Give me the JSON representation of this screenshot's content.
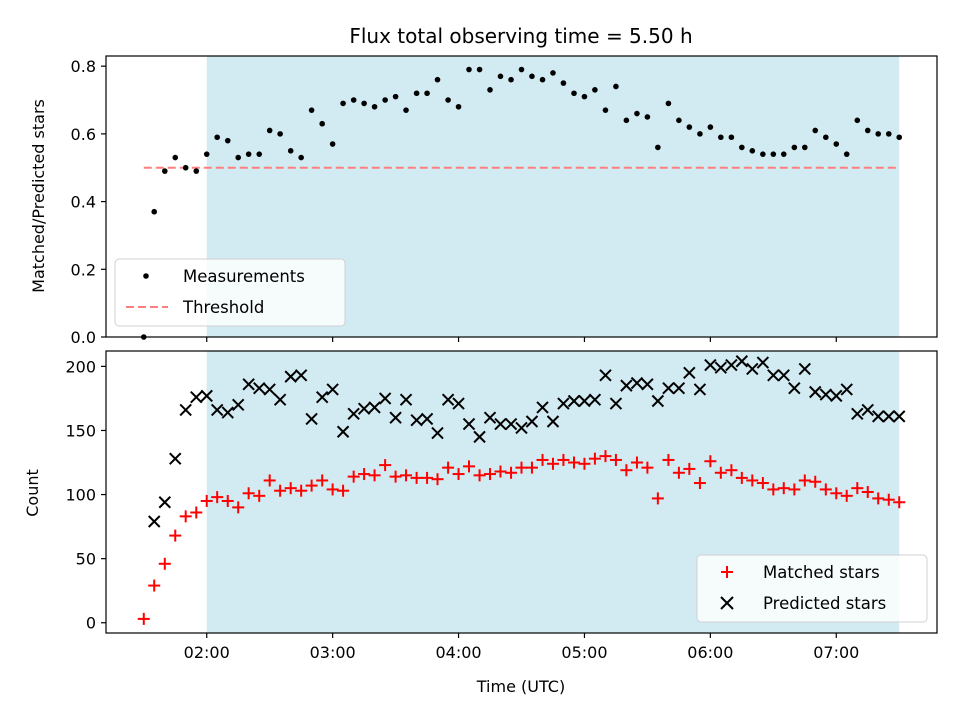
{
  "chart_data": [
    {
      "type": "scatter",
      "title": "Flux total observing time = 5.50 h",
      "xlabel": "",
      "ylabel": "Matched/Predicted stars",
      "ylim": [
        0,
        0.83
      ],
      "yticks": [
        0.0,
        0.2,
        0.4,
        0.6,
        0.8
      ],
      "ytick_labels": [
        "0.0",
        "0.2",
        "0.4",
        "0.6",
        "0.8"
      ],
      "xlim_hours": [
        1.2,
        7.8
      ],
      "observing_window_hours": [
        2.0,
        7.5
      ],
      "shade_color": "#add8e6",
      "grid": false,
      "legend_position": "lower-left",
      "threshold": {
        "name": "Threshold",
        "value": 0.5,
        "x_range_hours": [
          1.5,
          7.5
        ],
        "color": "#ff7f7f"
      },
      "series": [
        {
          "name": "Measurements",
          "color": "#000000",
          "marker": "dot",
          "x_hours": [
            1.5,
            1.583,
            1.667,
            1.75,
            1.833,
            1.917,
            2.0,
            2.083,
            2.167,
            2.25,
            2.333,
            2.417,
            2.5,
            2.583,
            2.667,
            2.75,
            2.833,
            2.917,
            3.0,
            3.083,
            3.167,
            3.25,
            3.333,
            3.417,
            3.5,
            3.583,
            3.667,
            3.75,
            3.833,
            3.917,
            4.0,
            4.083,
            4.167,
            4.25,
            4.333,
            4.417,
            4.5,
            4.583,
            4.667,
            4.75,
            4.833,
            4.917,
            5.0,
            5.083,
            5.167,
            5.25,
            5.333,
            5.417,
            5.5,
            5.583,
            5.667,
            5.75,
            5.833,
            5.917,
            6.0,
            6.083,
            6.167,
            6.25,
            6.333,
            6.417,
            6.5,
            6.583,
            6.667,
            6.75,
            6.833,
            6.917,
            7.0,
            7.083,
            7.167,
            7.25,
            7.333,
            7.417,
            7.5
          ],
          "y": [
            0.0,
            0.37,
            0.49,
            0.53,
            0.5,
            0.49,
            0.54,
            0.59,
            0.58,
            0.53,
            0.54,
            0.54,
            0.61,
            0.6,
            0.55,
            0.53,
            0.67,
            0.63,
            0.57,
            0.69,
            0.7,
            0.69,
            0.68,
            0.7,
            0.71,
            0.67,
            0.72,
            0.72,
            0.76,
            0.7,
            0.68,
            0.79,
            0.79,
            0.73,
            0.77,
            0.76,
            0.79,
            0.77,
            0.76,
            0.78,
            0.75,
            0.72,
            0.71,
            0.73,
            0.67,
            0.74,
            0.64,
            0.66,
            0.65,
            0.56,
            0.69,
            0.64,
            0.62,
            0.6,
            0.62,
            0.59,
            0.59,
            0.56,
            0.55,
            0.54,
            0.54,
            0.54,
            0.56,
            0.56,
            0.61,
            0.59,
            0.57,
            0.54,
            0.64,
            0.61,
            0.6,
            0.6,
            0.59
          ]
        }
      ]
    },
    {
      "type": "scatter",
      "title": "",
      "xlabel": "Time (UTC)",
      "ylabel": "Count",
      "ylim": [
        -8,
        212
      ],
      "yticks": [
        0,
        50,
        100,
        150,
        200
      ],
      "ytick_labels": [
        "0",
        "50",
        "100",
        "150",
        "200"
      ],
      "xlim_hours": [
        1.2,
        7.8
      ],
      "xticks_hours": [
        2,
        3,
        4,
        5,
        6,
        7
      ],
      "xtick_labels": [
        "02:00",
        "03:00",
        "04:00",
        "05:00",
        "06:00",
        "07:00"
      ],
      "observing_window_hours": [
        2.0,
        7.5
      ],
      "shade_color": "#add8e6",
      "grid": false,
      "legend_position": "lower-right",
      "series": [
        {
          "name": "Matched stars",
          "color": "#ff0000",
          "marker": "plus",
          "x_hours": [
            1.5,
            1.583,
            1.667,
            1.75,
            1.833,
            1.917,
            2.0,
            2.083,
            2.167,
            2.25,
            2.333,
            2.417,
            2.5,
            2.583,
            2.667,
            2.75,
            2.833,
            2.917,
            3.0,
            3.083,
            3.167,
            3.25,
            3.333,
            3.417,
            3.5,
            3.583,
            3.667,
            3.75,
            3.833,
            3.917,
            4.0,
            4.083,
            4.167,
            4.25,
            4.333,
            4.417,
            4.5,
            4.583,
            4.667,
            4.75,
            4.833,
            4.917,
            5.0,
            5.083,
            5.167,
            5.25,
            5.333,
            5.417,
            5.5,
            5.583,
            5.667,
            5.75,
            5.833,
            5.917,
            6.0,
            6.083,
            6.167,
            6.25,
            6.333,
            6.417,
            6.5,
            6.583,
            6.667,
            6.75,
            6.833,
            6.917,
            7.0,
            7.083,
            7.167,
            7.25,
            7.333,
            7.417,
            7.5
          ],
          "y": [
            3,
            29,
            46,
            68,
            83,
            86,
            95,
            98,
            95,
            90,
            101,
            99,
            111,
            103,
            105,
            103,
            107,
            111,
            104,
            103,
            114,
            116,
            115,
            123,
            114,
            115,
            113,
            113,
            112,
            121,
            116,
            122,
            115,
            116,
            118,
            117,
            121,
            121,
            127,
            124,
            127,
            125,
            124,
            128,
            130,
            127,
            119,
            125,
            121,
            97,
            127,
            117,
            120,
            109,
            126,
            117,
            119,
            113,
            111,
            109,
            104,
            105,
            104,
            111,
            110,
            104,
            101,
            99,
            105,
            102,
            97,
            96,
            94
          ]
        },
        {
          "name": "Predicted stars",
          "color": "#000000",
          "marker": "x",
          "x_hours": [
            1.583,
            1.667,
            1.75,
            1.833,
            1.917,
            2.0,
            2.083,
            2.167,
            2.25,
            2.333,
            2.417,
            2.5,
            2.583,
            2.667,
            2.75,
            2.833,
            2.917,
            3.0,
            3.083,
            3.167,
            3.25,
            3.333,
            3.417,
            3.5,
            3.583,
            3.667,
            3.75,
            3.833,
            3.917,
            4.0,
            4.083,
            4.167,
            4.25,
            4.333,
            4.417,
            4.5,
            4.583,
            4.667,
            4.75,
            4.833,
            4.917,
            5.0,
            5.083,
            5.167,
            5.25,
            5.333,
            5.417,
            5.5,
            5.583,
            5.667,
            5.75,
            5.833,
            5.917,
            6.0,
            6.083,
            6.167,
            6.25,
            6.333,
            6.417,
            6.5,
            6.583,
            6.667,
            6.75,
            6.833,
            6.917,
            7.0,
            7.083,
            7.167,
            7.25,
            7.333,
            7.417,
            7.5
          ],
          "y": [
            79,
            94,
            128,
            166,
            176,
            177,
            166,
            164,
            170,
            186,
            183,
            182,
            174,
            192,
            193,
            159,
            176,
            182,
            149,
            163,
            167,
            168,
            175,
            160,
            174,
            158,
            159,
            148,
            174,
            171,
            155,
            145,
            160,
            155,
            155,
            152,
            157,
            168,
            157,
            171,
            173,
            173,
            174,
            193,
            171,
            185,
            187,
            186,
            173,
            183,
            183,
            195,
            182,
            201,
            199,
            201,
            204,
            198,
            203,
            193,
            193,
            183,
            198,
            180,
            178,
            177,
            182,
            163,
            166,
            161,
            161,
            161
          ]
        }
      ]
    }
  ]
}
